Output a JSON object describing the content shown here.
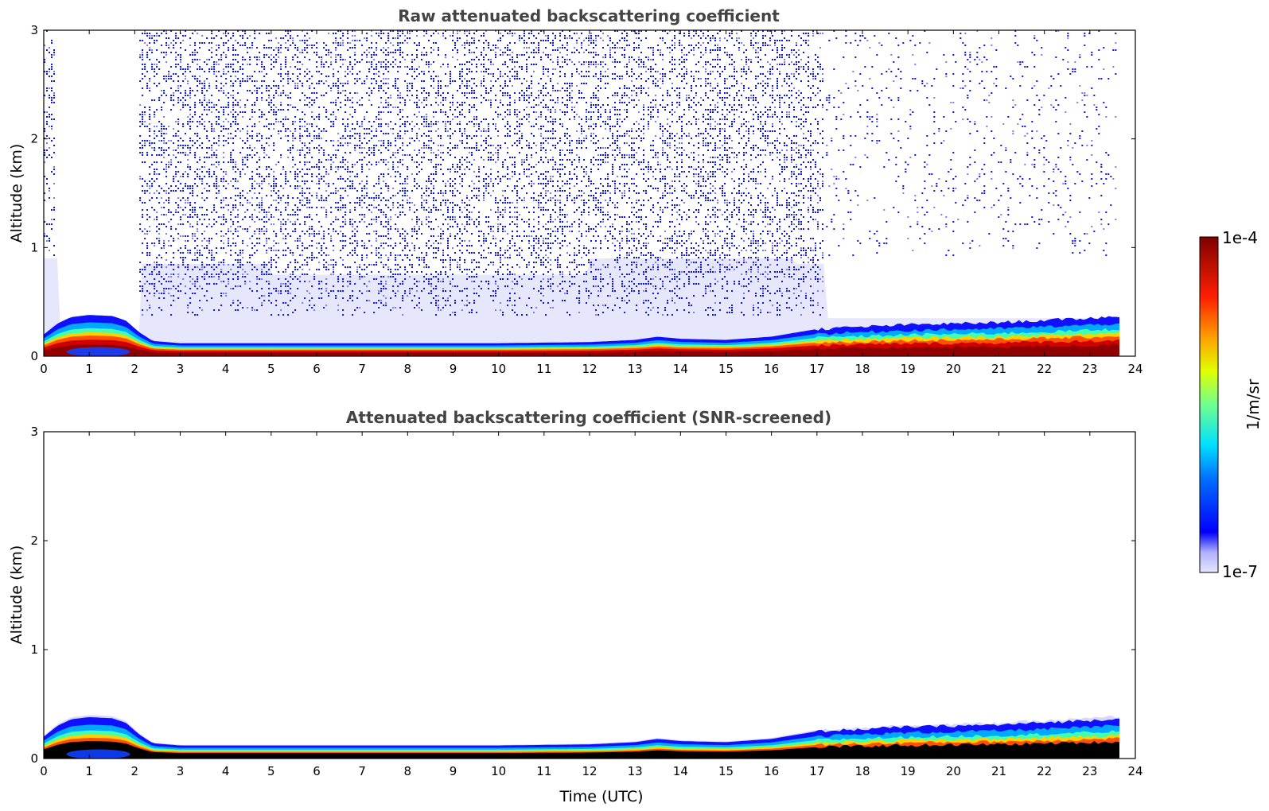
{
  "chart_data": [
    {
      "type": "heatmap",
      "title": "Raw attenuated backscattering coefficient",
      "xlabel": "",
      "ylabel": "Altitude (km)",
      "xlim": [
        0,
        24
      ],
      "ylim": [
        0,
        3
      ],
      "x_ticks": [
        "0",
        "1",
        "2",
        "3",
        "4",
        "5",
        "6",
        "7",
        "8",
        "9",
        "10",
        "11",
        "12",
        "13",
        "14",
        "15",
        "16",
        "17",
        "18",
        "19",
        "20",
        "21",
        "22",
        "23",
        "24"
      ],
      "y_ticks": [
        "0",
        "1",
        "2",
        "3"
      ],
      "data_end_time": 23.65,
      "boundary_layer_top_km": {
        "time": [
          0,
          0.3,
          0.6,
          1.0,
          1.5,
          1.8,
          2.1,
          2.4,
          3,
          5,
          8,
          10,
          12,
          13,
          13.5,
          14,
          15,
          16,
          17,
          18,
          19,
          20,
          21,
          22,
          23,
          23.65
        ],
        "value": [
          0.2,
          0.3,
          0.36,
          0.38,
          0.37,
          0.33,
          0.22,
          0.14,
          0.12,
          0.12,
          0.12,
          0.12,
          0.13,
          0.15,
          0.18,
          0.16,
          0.15,
          0.18,
          0.25,
          0.27,
          0.29,
          0.3,
          0.31,
          0.33,
          0.35,
          0.37
        ]
      },
      "noise_regions": [
        {
          "t0": 0,
          "t1": 0.3,
          "alt_top_km": 3,
          "density": "high"
        },
        {
          "t0": 0.3,
          "t1": 2.1,
          "alt_top_km": 3,
          "density": "clear"
        },
        {
          "t0": 2.1,
          "t1": 17.2,
          "alt_top_km": 3,
          "density": "high"
        },
        {
          "t0": 17.2,
          "t1": 23.65,
          "alt_top_km": 3,
          "density": "low"
        }
      ]
    },
    {
      "type": "heatmap",
      "title": "Attenuated backscattering coefficient (SNR-screened)",
      "xlabel": "Time (UTC)",
      "ylabel": "Altitude (km)",
      "xlim": [
        0,
        24
      ],
      "ylim": [
        0,
        3
      ],
      "x_ticks": [
        "0",
        "1",
        "2",
        "3",
        "4",
        "5",
        "6",
        "7",
        "8",
        "9",
        "10",
        "11",
        "12",
        "13",
        "14",
        "15",
        "16",
        "17",
        "18",
        "19",
        "20",
        "21",
        "22",
        "23",
        "24"
      ],
      "y_ticks": [
        "0",
        "1",
        "2",
        "3"
      ],
      "data_end_time": 23.65,
      "boundary_layer_top_km": {
        "time": [
          0,
          0.3,
          0.6,
          1.0,
          1.5,
          1.8,
          2.1,
          2.4,
          3,
          5,
          8,
          10,
          12,
          13,
          13.5,
          14,
          15,
          16,
          17,
          18,
          19,
          20,
          21,
          22,
          23,
          23.65
        ],
        "value": [
          0.2,
          0.3,
          0.36,
          0.38,
          0.37,
          0.33,
          0.22,
          0.14,
          0.12,
          0.12,
          0.12,
          0.12,
          0.13,
          0.15,
          0.18,
          0.16,
          0.15,
          0.18,
          0.25,
          0.27,
          0.29,
          0.3,
          0.31,
          0.33,
          0.35,
          0.37
        ]
      },
      "noise_regions": []
    }
  ],
  "colorbar": {
    "label": "1/m/sr",
    "max_label": "1e-4",
    "min_label": "1e-7",
    "colors": [
      "#e6e6ff",
      "#0000ff",
      "#00a0ff",
      "#00ffff",
      "#80ff80",
      "#ffff00",
      "#ff8000",
      "#ff0000",
      "#800000"
    ]
  }
}
